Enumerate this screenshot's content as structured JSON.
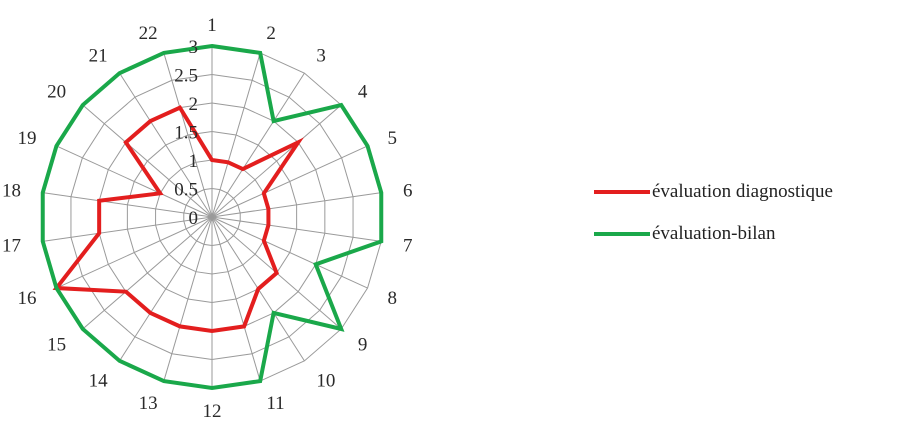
{
  "chart_data": {
    "type": "radar",
    "categories": [
      "1",
      "2",
      "3",
      "4",
      "5",
      "6",
      "7",
      "8",
      "9",
      "10",
      "11",
      "12",
      "13",
      "14",
      "15",
      "16",
      "17",
      "18",
      "19",
      "20",
      "21",
      "22"
    ],
    "r_ticks": [
      "0",
      "0.5",
      "1",
      "1.5",
      "2",
      "2.5",
      "3"
    ],
    "rlim": [
      0,
      3
    ],
    "grid": true,
    "legend_position": "right",
    "series": [
      {
        "name": "évaluation diagnostique",
        "color": "#e31e1e",
        "values": [
          1.0,
          1.0,
          1.0,
          2.0,
          1.0,
          1.0,
          1.0,
          1.0,
          1.5,
          1.5,
          2.0,
          2.0,
          2.0,
          2.0,
          2.0,
          3.0,
          2.0,
          2.0,
          1.0,
          2.0,
          2.0,
          2.0
        ]
      },
      {
        "name": "évaluation-bilan",
        "color": "#1aa84a",
        "values": [
          3.0,
          3.0,
          2.0,
          3.0,
          3.0,
          3.0,
          3.0,
          2.0,
          3.0,
          2.0,
          3.0,
          3.0,
          3.0,
          3.0,
          3.0,
          3.0,
          3.0,
          3.0,
          3.0,
          3.0,
          3.0,
          3.0
        ]
      }
    ]
  }
}
